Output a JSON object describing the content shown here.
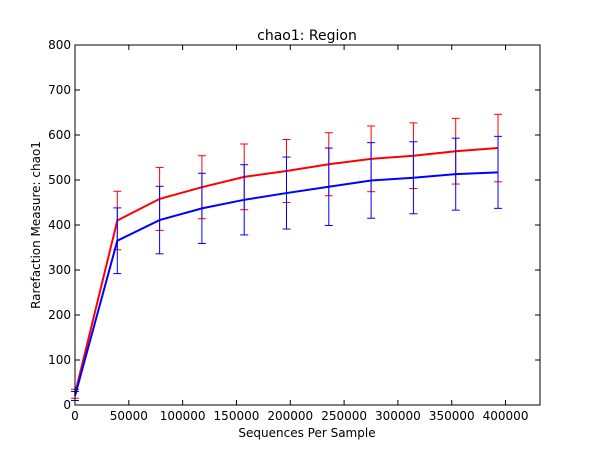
{
  "chart_data": {
    "type": "line",
    "title": "chao1: Region",
    "xlabel": "Sequences Per Sample",
    "ylabel": "Rarefaction Measure: chao1",
    "xlim": [
      0,
      432000
    ],
    "ylim": [
      0,
      800
    ],
    "xticks": [
      0,
      50000,
      100000,
      150000,
      200000,
      250000,
      300000,
      350000,
      400000
    ],
    "yticks": [
      0,
      100,
      200,
      300,
      400,
      500,
      600,
      700,
      800
    ],
    "grid": false,
    "legend": "none",
    "x": [
      10,
      39300,
      78600,
      117900,
      157200,
      196500,
      235800,
      275100,
      314400,
      353700,
      393000
    ],
    "series": [
      {
        "color": "#ff0000",
        "values": [
          25,
          410,
          458,
          484,
          507,
          520,
          535,
          547,
          554,
          564,
          571
        ],
        "err": [
          10,
          65,
          70,
          70,
          73,
          70,
          70,
          73,
          73,
          73,
          75
        ]
      },
      {
        "color": "#0000ff",
        "values": [
          20,
          365,
          411,
          437,
          456,
          471,
          485,
          499,
          505,
          513,
          517
        ],
        "err": [
          10,
          73,
          75,
          78,
          78,
          80,
          86,
          84,
          80,
          80,
          80
        ]
      }
    ]
  }
}
